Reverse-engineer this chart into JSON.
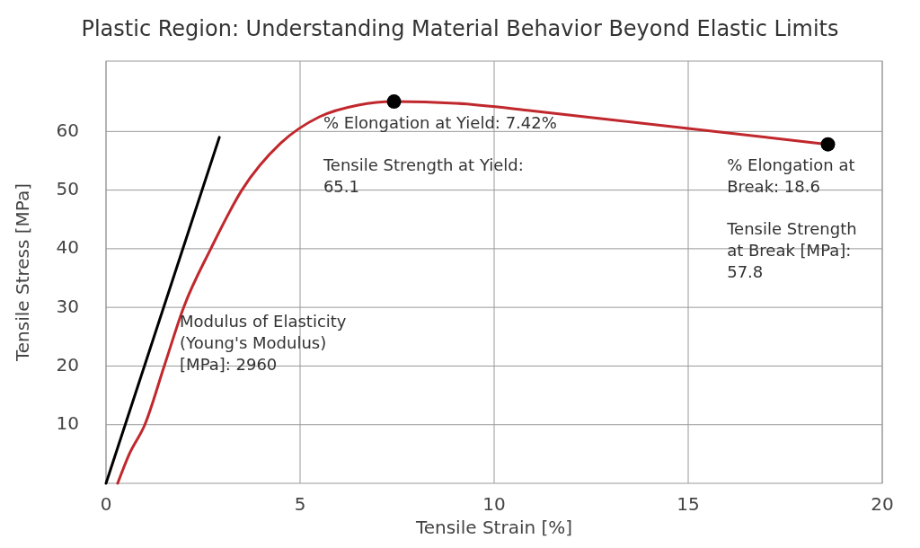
{
  "chart_data": {
    "type": "line",
    "title": "Plastic Region: Understanding Material Behavior Beyond Elastic Limits",
    "xlabel": "Tensile Strain [%]",
    "ylabel": "Tensile Stress [MPa]",
    "series": [
      {
        "color": "#c0282d",
        "x": [
          0.3,
          0.6,
          1,
          1.5,
          2,
          2.7,
          3.5,
          4.5,
          5.5,
          6.5,
          7.42,
          9,
          11,
          13,
          15,
          17,
          18.6
        ],
        "values": [
          0,
          5,
          10,
          20,
          30,
          40,
          50,
          58,
          62.5,
          64.5,
          65.1,
          64.8,
          63.5,
          62,
          60.5,
          59,
          57.8
        ]
      },
      {
        "color": "#000000",
        "x": [
          0,
          2.92
        ],
        "values": [
          0,
          59
        ]
      },
      {
        "type": "scatter",
        "color": "#000000",
        "marker": "circle",
        "x": [
          7.42,
          18.6
        ],
        "values": [
          65.1,
          57.8
        ]
      }
    ],
    "xlim": [
      0,
      20
    ],
    "xticks": [
      0,
      5,
      10,
      15,
      20
    ],
    "ylim": [
      0,
      72
    ],
    "yticks": [
      10,
      20,
      30,
      40,
      50,
      60
    ],
    "grid": true,
    "annotations": [
      "% Elongation at Yield: 7.42%",
      "Tensile Strength at Yield: 65.1",
      "% Elongation at Break: 18.6",
      "Tensile Strength at Break [MPa]: 57.8",
      "Modulus of Elasticity (Young's Modulus) [MPa]: 2960"
    ]
  }
}
